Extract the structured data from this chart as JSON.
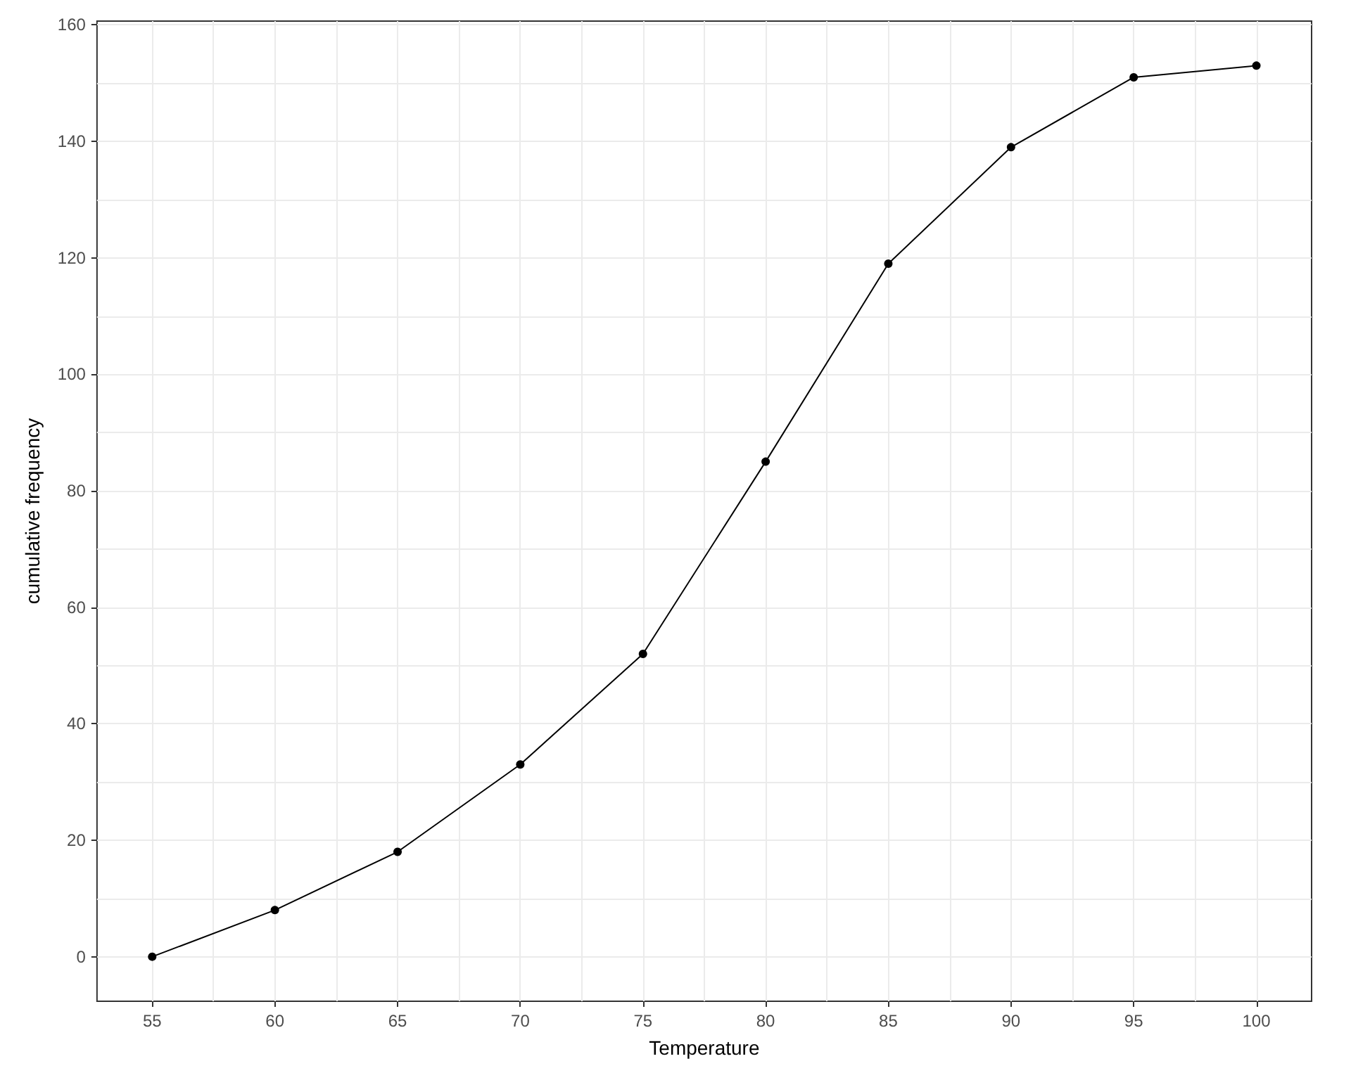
{
  "chart_data": {
    "type": "line",
    "xlabel": "Temperature",
    "ylabel": "cumulative frequency",
    "x": [
      55,
      60,
      65,
      70,
      75,
      80,
      85,
      90,
      95,
      100
    ],
    "series": [
      {
        "color": "#000000",
        "values": [
          0,
          8,
          18,
          33,
          52,
          85,
          119,
          139,
          151,
          153
        ]
      }
    ],
    "xlim": [
      52.75,
      102.25
    ],
    "xticks": [
      55,
      {
        "value": 57.5,
        "label": null
      },
      60,
      {
        "value": 62.5,
        "label": null
      },
      65,
      {
        "value": 67.5,
        "label": null
      },
      70,
      {
        "value": 72.5,
        "label": null
      },
      75,
      {
        "value": 77.5,
        "label": null
      },
      80,
      {
        "value": 82.5,
        "label": null
      },
      85,
      {
        "value": 87.5,
        "label": null
      },
      90,
      {
        "value": 92.5,
        "label": null
      },
      95,
      {
        "value": 97.5,
        "label": null
      },
      100
    ],
    "ylim": [
      -7.65,
      160.65
    ],
    "yticks": [
      0,
      {
        "value": 10,
        "label": null
      },
      20,
      {
        "value": 30,
        "label": null
      },
      40,
      {
        "value": 50,
        "label": null
      },
      60,
      {
        "value": 70,
        "label": null
      },
      80,
      {
        "value": 90,
        "label": null
      },
      100,
      {
        "value": 110,
        "label": null
      },
      120,
      {
        "value": 130,
        "label": null
      },
      140,
      {
        "value": 150,
        "label": null
      },
      160
    ],
    "grid": true,
    "marker": "circle",
    "line_style": "solid"
  }
}
